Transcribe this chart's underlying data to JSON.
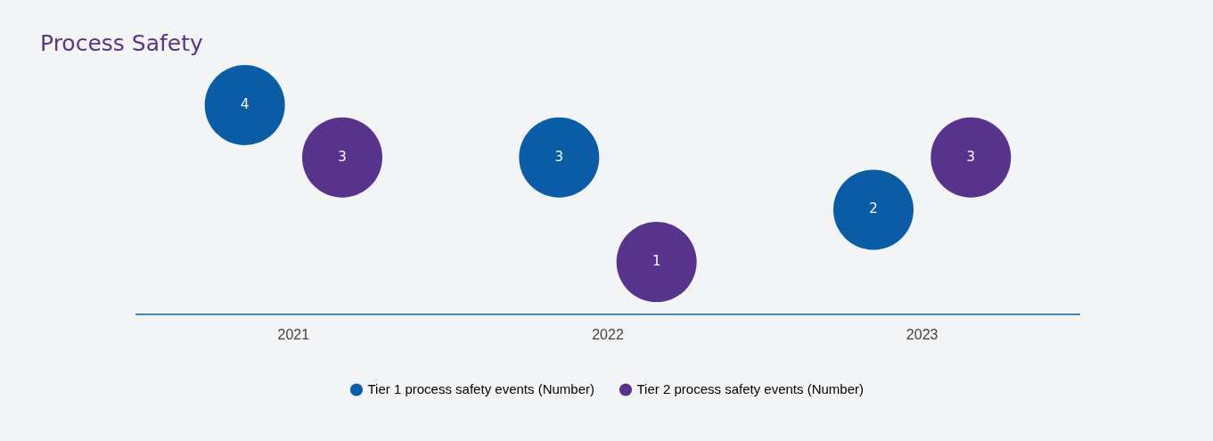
{
  "chart_data": {
    "type": "scatter",
    "title": "Process Safety",
    "categories": [
      "2021",
      "2022",
      "2023"
    ],
    "series": [
      {
        "name": "Tier 1 process safety events (Number)",
        "color": "#0a5ca6",
        "values": [
          4,
          3,
          2
        ]
      },
      {
        "name": "Tier 2 process safety events (Number)",
        "color": "#58338c",
        "values": [
          3,
          1,
          3
        ]
      }
    ],
    "marker": "circle",
    "data_labels": true,
    "grid": false,
    "legend": "bottom",
    "tick_labels": "x"
  }
}
